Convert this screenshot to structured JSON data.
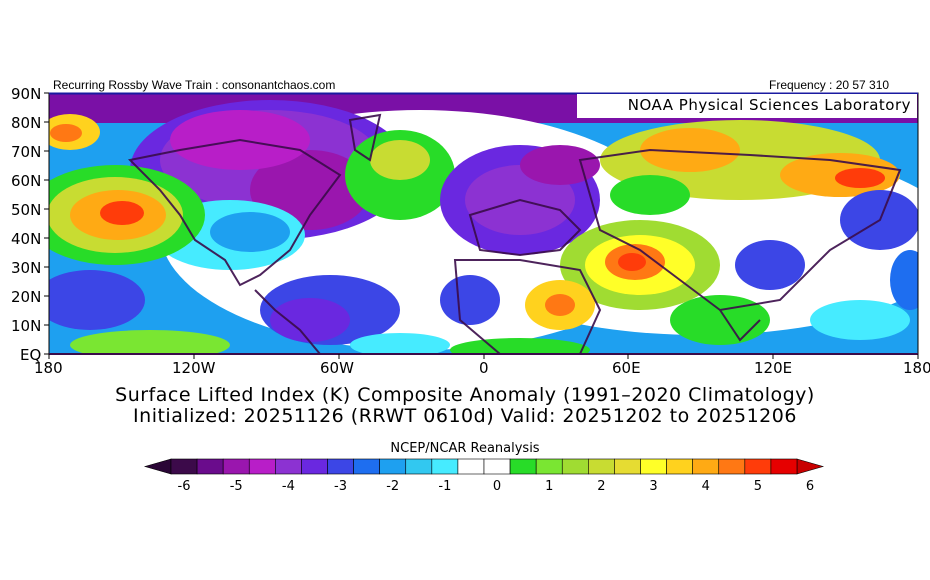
{
  "header": {
    "left_text": "Recurring Rossby Wave Train : consonantchaos.com",
    "right_text": "Frequency : 20 57 310"
  },
  "map": {
    "source_label": "NOAA Physical Sciences Laboratory",
    "lat_labels": [
      "90N",
      "80N",
      "70N",
      "60N",
      "50N",
      "40N",
      "30N",
      "20N",
      "10N",
      "EQ"
    ],
    "lon_labels": [
      "180",
      "120W",
      "60W",
      "0",
      "60E",
      "120E",
      "180"
    ],
    "background_color": "#ffffff"
  },
  "title": {
    "line1": "Surface Lifted Index (K) Composite Anomaly (1991–2020 Climatology)",
    "line2": "Initialized: 20251126 (RRWT 0610d) Valid: 20251202 to 20251206"
  },
  "colorbar": {
    "label": "NCEP/NCAR Reanalysis",
    "tick_labels": [
      "-6",
      "-5",
      "-4",
      "-3",
      "-2",
      "-1",
      "0",
      "1",
      "2",
      "3",
      "4",
      "5",
      "6"
    ],
    "colors": [
      "#3c0a4a",
      "#6a0c8c",
      "#9a16ae",
      "#b81ec8",
      "#8c32d2",
      "#6a28e0",
      "#3c46e6",
      "#1e6ef0",
      "#1ea0f0",
      "#32c8f0",
      "#46ebff",
      "#ffffff",
      "#ffffff",
      "#28dc28",
      "#7ae632",
      "#a0dc32",
      "#c8dc32",
      "#e6dc32",
      "#ffff28",
      "#ffd21e",
      "#ffaa14",
      "#ff7814",
      "#ff3c0a",
      "#e60000"
    ],
    "left_arrow_color": "#2a0636",
    "right_arrow_color": "#c80000"
  }
}
